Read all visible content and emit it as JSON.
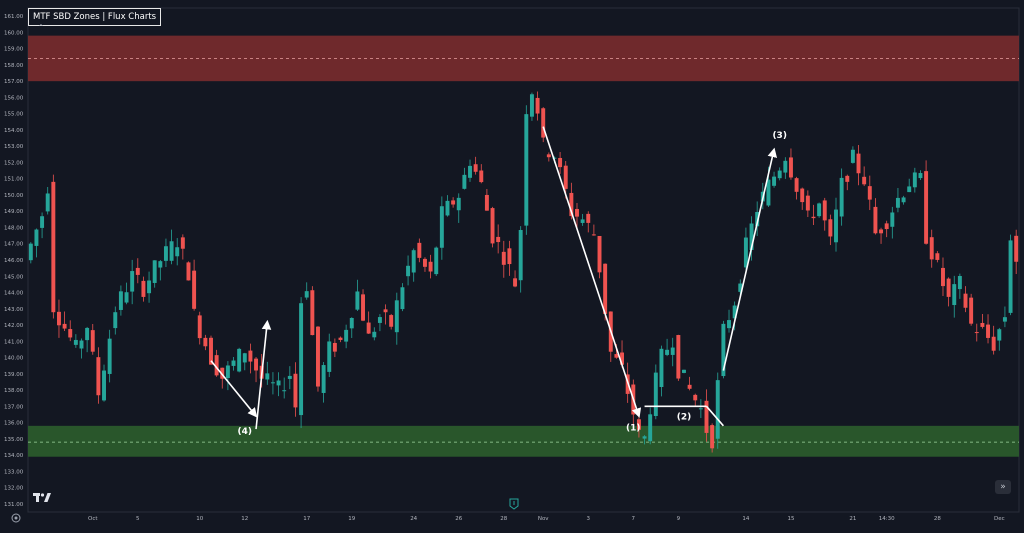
{
  "indicator": {
    "title": "MTF SBD Zones | Flux Charts",
    "collapse_icon": "chevron-up-icon"
  },
  "colors": {
    "background": "#131722",
    "bull": "#26a69a",
    "bear": "#ef5350",
    "supply_zone": "#7a2b2e",
    "demand_zone": "#2a5a2c",
    "annotation": "#ffffff",
    "axis_text": "#b2b5be"
  },
  "chart_data": {
    "type": "candlestick",
    "ylim": [
      130.5,
      161.5
    ],
    "y_ticks": [
      131.0,
      132.0,
      133.0,
      134.0,
      135.0,
      136.0,
      137.0,
      138.0,
      139.0,
      140.0,
      141.0,
      142.0,
      143.0,
      144.0,
      145.0,
      146.0,
      147.0,
      148.0,
      149.0,
      150.0,
      151.0,
      152.0,
      153.0,
      154.0,
      155.0,
      156.0,
      157.0,
      158.0,
      159.0,
      160.0,
      161.0
    ],
    "x_ticks": [
      {
        "label": "Oct",
        "bar": 11
      },
      {
        "label": "5",
        "bar": 19
      },
      {
        "label": "10",
        "bar": 30
      },
      {
        "label": "12",
        "bar": 38
      },
      {
        "label": "17",
        "bar": 49
      },
      {
        "label": "19",
        "bar": 57
      },
      {
        "label": "24",
        "bar": 68
      },
      {
        "label": "26",
        "bar": 76
      },
      {
        "label": "28",
        "bar": 84
      },
      {
        "label": "Nov",
        "bar": 91
      },
      {
        "label": "3",
        "bar": 99
      },
      {
        "label": "7",
        "bar": 107
      },
      {
        "label": "9",
        "bar": 115
      },
      {
        "label": "14",
        "bar": 127
      },
      {
        "label": "15",
        "bar": 135
      },
      {
        "label": "21",
        "bar": 146
      },
      {
        "label": "14:30",
        "bar": 152
      },
      {
        "label": "28",
        "bar": 161
      },
      {
        "label": "Dec",
        "bar": 172
      }
    ],
    "bar_count": 176,
    "supply_zone": {
      "top": 159.8,
      "bottom": 157.0,
      "mid": 158.4
    },
    "demand_zone": {
      "top": 135.8,
      "bottom": 133.9,
      "mid": 134.8
    },
    "path": [
      [
        0,
        146.0
      ],
      [
        3,
        148.8
      ],
      [
        4,
        150.6
      ],
      [
        5,
        143.2
      ],
      [
        9,
        140.5
      ],
      [
        11,
        142.0
      ],
      [
        13,
        137.8
      ],
      [
        16,
        143.0
      ],
      [
        19,
        145.0
      ],
      [
        21,
        144.3
      ],
      [
        24,
        146.0
      ],
      [
        27,
        147.2
      ],
      [
        29,
        145.3
      ],
      [
        30,
        142.6
      ],
      [
        33,
        140.0
      ],
      [
        35,
        138.8
      ],
      [
        39,
        140.5
      ],
      [
        42,
        138.7
      ],
      [
        45,
        138.0
      ],
      [
        47,
        139.0
      ],
      [
        48,
        137.0
      ],
      [
        49,
        143.5
      ],
      [
        50,
        144.5
      ],
      [
        52,
        138.2
      ],
      [
        54,
        140.5
      ],
      [
        56,
        141.0
      ],
      [
        59,
        144.0
      ],
      [
        61,
        141.2
      ],
      [
        63,
        142.5
      ],
      [
        65,
        142.0
      ],
      [
        67,
        144.5
      ],
      [
        69,
        146.5
      ],
      [
        72,
        145.0
      ],
      [
        74,
        148.8
      ],
      [
        77,
        150.0
      ],
      [
        79,
        152.2
      ],
      [
        81,
        150.6
      ],
      [
        83,
        147.5
      ],
      [
        85,
        146.3
      ],
      [
        87,
        144.6
      ],
      [
        88,
        148.0
      ],
      [
        89,
        155.4
      ],
      [
        90,
        156.5
      ],
      [
        91,
        155.3
      ],
      [
        92,
        153.0
      ],
      [
        94,
        152.5
      ],
      [
        97,
        149.0
      ],
      [
        99,
        148.5
      ],
      [
        101,
        147.6
      ],
      [
        102,
        145.5
      ],
      [
        104,
        140.3
      ],
      [
        106,
        139.2
      ],
      [
        108,
        136.6
      ],
      [
        109,
        135.2
      ],
      [
        110,
        135.0
      ],
      [
        111,
        137.0
      ],
      [
        113,
        140.0
      ],
      [
        115,
        141.2
      ],
      [
        116,
        139.3
      ],
      [
        118,
        138.0
      ],
      [
        120,
        136.8
      ],
      [
        121,
        135.6
      ],
      [
        122,
        135.0
      ],
      [
        124,
        141.6
      ],
      [
        126,
        143.5
      ],
      [
        128,
        146.8
      ],
      [
        130,
        149.2
      ],
      [
        132,
        150.6
      ],
      [
        134,
        151.8
      ],
      [
        135,
        152.5
      ],
      [
        137,
        150.6
      ],
      [
        139,
        148.5
      ],
      [
        141,
        149.5
      ],
      [
        143,
        147.0
      ],
      [
        145,
        150.6
      ],
      [
        147,
        152.2
      ],
      [
        149,
        151.0
      ],
      [
        151,
        147.6
      ],
      [
        153,
        148.5
      ],
      [
        155,
        149.8
      ],
      [
        157,
        150.8
      ],
      [
        159,
        150.9
      ],
      [
        160,
        147.5
      ],
      [
        162,
        145.5
      ],
      [
        164,
        143.5
      ],
      [
        166,
        144.5
      ],
      [
        168,
        142.0
      ],
      [
        170,
        141.6
      ],
      [
        172,
        140.8
      ],
      [
        174,
        142.6
      ],
      [
        175,
        147.5
      ],
      [
        176,
        146.0
      ]
    ],
    "annotations": [
      {
        "label": "(4)",
        "x": 38,
        "y": 135.3
      },
      {
        "label": "(1)",
        "x": 107,
        "y": 135.5
      },
      {
        "label": "(2)",
        "x": 116,
        "y": 136.2
      },
      {
        "label": "(3)",
        "x": 133,
        "y": 153.5
      }
    ],
    "arrows": [
      {
        "from": [
          32,
          139.8
        ],
        "to": [
          40,
          136.4
        ],
        "head": true
      },
      {
        "from": [
          40,
          135.6
        ],
        "to": [
          42,
          142.2
        ],
        "head": true
      },
      {
        "from": [
          91,
          154.2
        ],
        "to": [
          108,
          136.4
        ],
        "head": true
      },
      {
        "from": [
          109,
          137.0
        ],
        "to": [
          120,
          137.0
        ],
        "head": false
      },
      {
        "from": [
          120,
          137.0
        ],
        "to": [
          123,
          135.8
        ],
        "head": false
      },
      {
        "from": [
          123,
          139.2
        ],
        "to": [
          132,
          152.8
        ],
        "head": true
      }
    ]
  }
}
